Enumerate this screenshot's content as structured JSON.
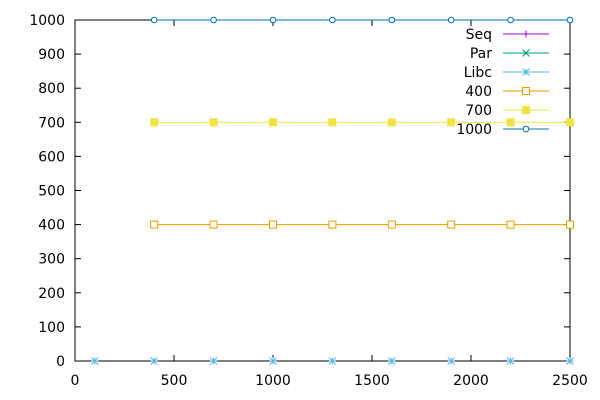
{
  "chart_data": {
    "type": "line",
    "title": "",
    "xlabel": "",
    "ylabel": "",
    "xlim": [
      0,
      2500
    ],
    "ylim": [
      0,
      1000
    ],
    "x_ticks": [
      "0",
      "500",
      "1000",
      "1500",
      "2000",
      "2500"
    ],
    "y_ticks": [
      "0",
      "100",
      "200",
      "300",
      "400",
      "500",
      "600",
      "700",
      "800",
      "900",
      "1000"
    ],
    "grid": false,
    "legend_position": "top-right",
    "series": [
      {
        "name": "Seq",
        "color": "#9400d3",
        "marker": "plus",
        "x": [],
        "y": []
      },
      {
        "name": "Par",
        "color": "#009e73",
        "marker": "cross",
        "x": [],
        "y": []
      },
      {
        "name": "Libc",
        "color": "#56b4e9",
        "marker": "star",
        "x": [
          100,
          400,
          700,
          1000,
          1300,
          1600,
          1900,
          2200,
          2500
        ],
        "y": [
          0,
          0,
          0,
          0,
          0,
          0,
          0,
          0,
          0
        ]
      },
      {
        "name": "400",
        "color": "#e69f00",
        "marker": "square-open",
        "x": [
          400,
          700,
          1000,
          1300,
          1600,
          1900,
          2200,
          2500
        ],
        "y": [
          400,
          400,
          400,
          400,
          400,
          400,
          400,
          400
        ]
      },
      {
        "name": "700",
        "color": "#f0e442",
        "marker": "square-filled",
        "x": [
          400,
          700,
          1000,
          1300,
          1600,
          1900,
          2200,
          2500
        ],
        "y": [
          700,
          700,
          700,
          700,
          700,
          700,
          700,
          700
        ]
      },
      {
        "name": "1000",
        "color": "#0072b2",
        "marker": "circle-open",
        "x": [
          400,
          700,
          1000,
          1300,
          1600,
          1900,
          2200,
          2500
        ],
        "y": [
          1000,
          1000,
          1000,
          1000,
          1000,
          1000,
          1000,
          1000
        ]
      }
    ]
  }
}
